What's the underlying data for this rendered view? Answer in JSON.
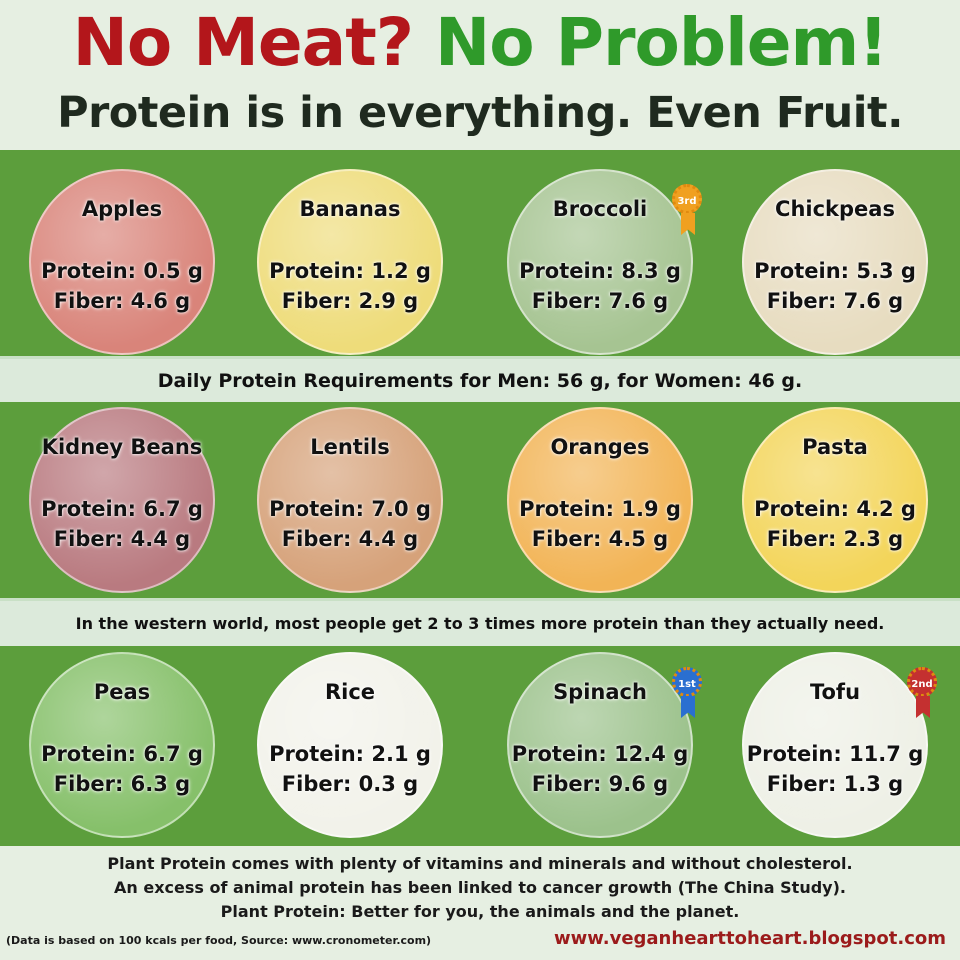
{
  "title": {
    "part1": "No Meat?",
    "part2": "No Problem!"
  },
  "subtitle": "Protein is in everything. Even Fruit.",
  "foods": [
    {
      "name": "Apples",
      "protein": "Protein: 0.5 g",
      "fiber": "Fiber: 4.6 g",
      "color": "#d9847a"
    },
    {
      "name": "Bananas",
      "protein": "Protein: 1.2 g",
      "fiber": "Fiber: 2.9 g",
      "color": "#eedc7a"
    },
    {
      "name": "Broccoli",
      "protein": "Protein: 8.3 g",
      "fiber": "Fiber: 7.6 g",
      "color": "#a6c492",
      "badge": "3rd"
    },
    {
      "name": "Chickpeas",
      "protein": "Protein: 5.3 g",
      "fiber": "Fiber: 7.6 g",
      "color": "#e7dcc0"
    },
    {
      "name": "Kidney Beans",
      "protein": "Protein: 6.7 g",
      "fiber": "Fiber: 4.4 g",
      "color": "#b97a80"
    },
    {
      "name": "Lentils",
      "protein": "Protein: 7.0 g",
      "fiber": "Fiber: 4.4 g",
      "color": "#d6a27a"
    },
    {
      "name": "Oranges",
      "protein": "Protein: 1.9 g",
      "fiber": "Fiber: 4.5 g",
      "color": "#f2b456"
    },
    {
      "name": "Pasta",
      "protein": "Protein: 4.2 g",
      "fiber": "Fiber: 2.3 g",
      "color": "#f3d55a"
    },
    {
      "name": "Peas",
      "protein": "Protein: 6.7 g",
      "fiber": "Fiber: 6.3 g",
      "color": "#86c06a"
    },
    {
      "name": "Rice",
      "protein": "Protein: 2.1 g",
      "fiber": "Fiber: 0.3 g",
      "color": "#f2f2ea"
    },
    {
      "name": "Spinach",
      "protein": "Protein: 12.4 g",
      "fiber": "Fiber: 9.6 g",
      "color": "#9cc28c",
      "badge": "1st"
    },
    {
      "name": "Tofu",
      "protein": "Protein: 11.7 g",
      "fiber": "Fiber: 1.3 g",
      "color": "#eef0e6",
      "badge": "2nd"
    }
  ],
  "strip1": "Daily Protein Requirements for Men: 56 g, for Women: 46 g.",
  "strip2": "In the western world, most people get 2 to 3 times more protein than they actually need.",
  "footer": [
    "Plant Protein comes with plenty of vitamins and minerals and without cholesterol.",
    "An excess of animal protein has been linked to cancer growth (The China Study).",
    "Plant Protein: Better for you, the animals and the planet."
  ],
  "note": "(Data is based on 100 kcals per food, Source: www.cronometer.com)",
  "site": "www.veganhearttoheart.blogspot.com",
  "badge_colors": {
    "1st": "#2a6fd0",
    "2nd": "#c43030",
    "3rd": "#f0a020"
  }
}
